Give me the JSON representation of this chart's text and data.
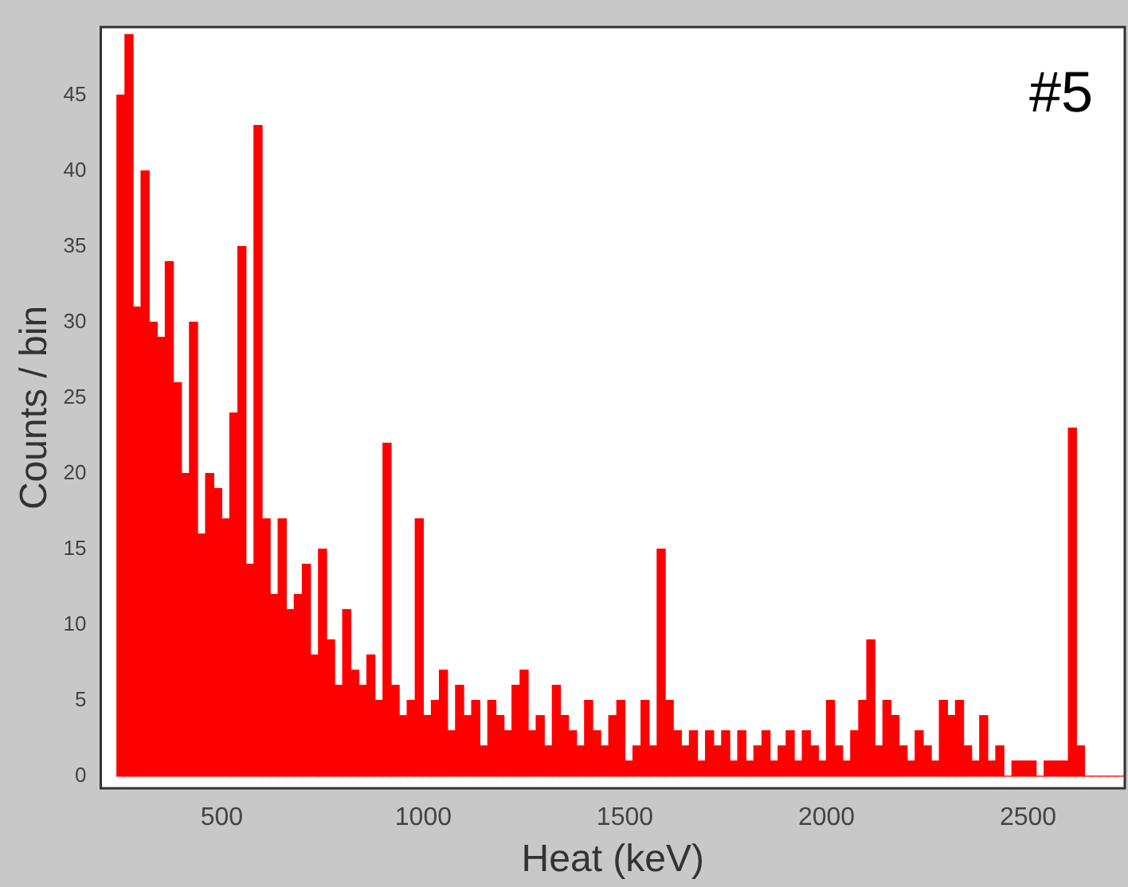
{
  "chart_data": {
    "type": "histogram",
    "xlabel": "Heat (keV)",
    "ylabel": "Counts / bin",
    "annotations": [
      "#5"
    ],
    "bins": [
      240,
      260,
      280,
      300,
      320,
      340,
      360,
      380,
      400,
      420,
      440,
      460,
      480,
      500,
      520,
      540,
      560,
      580,
      600,
      620,
      640,
      660,
      680,
      700,
      720,
      740,
      760,
      780,
      800,
      820,
      840,
      860,
      880,
      900,
      920,
      940,
      960,
      980,
      1000,
      1020,
      1040,
      1060,
      1080,
      1100,
      1120,
      1140,
      1160,
      1180,
      1200,
      1220,
      1240,
      1260,
      1280,
      1300,
      1320,
      1340,
      1360,
      1380,
      1400,
      1420,
      1440,
      1460,
      1480,
      1500,
      1520,
      1540,
      1560,
      1580,
      1600,
      1620,
      1640,
      1660,
      1680,
      1700,
      1720,
      1740,
      1760,
      1780,
      1800,
      1820,
      1840,
      1860,
      1880,
      1900,
      1920,
      1940,
      1960,
      1980,
      2000,
      2020,
      2040,
      2060,
      2080,
      2100,
      2120,
      2140,
      2160,
      2180,
      2200,
      2220,
      2240,
      2260,
      2280,
      2300,
      2320,
      2340,
      2360,
      2380,
      2400,
      2420,
      2440,
      2460,
      2480,
      2500,
      2520,
      2540,
      2560,
      2580,
      2600,
      2620,
      2640,
      2660,
      2680,
      2700,
      2720,
      2740
    ],
    "values": [
      45,
      49,
      31,
      40,
      30,
      29,
      34,
      26,
      20,
      30,
      16,
      20,
      19,
      17,
      24,
      35,
      14,
      43,
      17,
      12,
      17,
      11,
      12,
      14,
      8,
      15,
      9,
      6,
      11,
      7,
      6,
      8,
      5,
      22,
      6,
      4,
      5,
      17,
      4,
      5,
      7,
      3,
      6,
      4,
      5,
      2,
      5,
      4,
      3,
      6,
      7,
      3,
      4,
      2,
      6,
      4,
      3,
      2,
      5,
      3,
      2,
      4,
      5,
      1,
      2,
      5,
      2,
      15,
      5,
      3,
      2,
      3,
      1,
      3,
      2,
      3,
      1,
      3,
      1,
      2,
      3,
      1,
      2,
      3,
      1,
      3,
      2,
      1,
      5,
      2,
      1,
      3,
      5,
      9,
      2,
      5,
      4,
      2,
      1,
      3,
      2,
      1,
      5,
      4,
      5,
      2,
      1,
      4,
      1,
      2,
      0,
      1,
      1,
      1,
      0,
      1,
      1,
      1,
      23,
      2,
      0,
      0,
      0,
      0,
      0
    ],
    "color": "#ff0000",
    "xlim": [
      200,
      2740
    ],
    "ylim": [
      -0.8,
      49.5
    ],
    "xticks": [
      500,
      1000,
      1500,
      2000,
      2500
    ],
    "yticks": [
      0,
      5,
      10,
      15,
      20,
      25,
      30,
      35,
      40,
      45
    ],
    "grid": false
  }
}
